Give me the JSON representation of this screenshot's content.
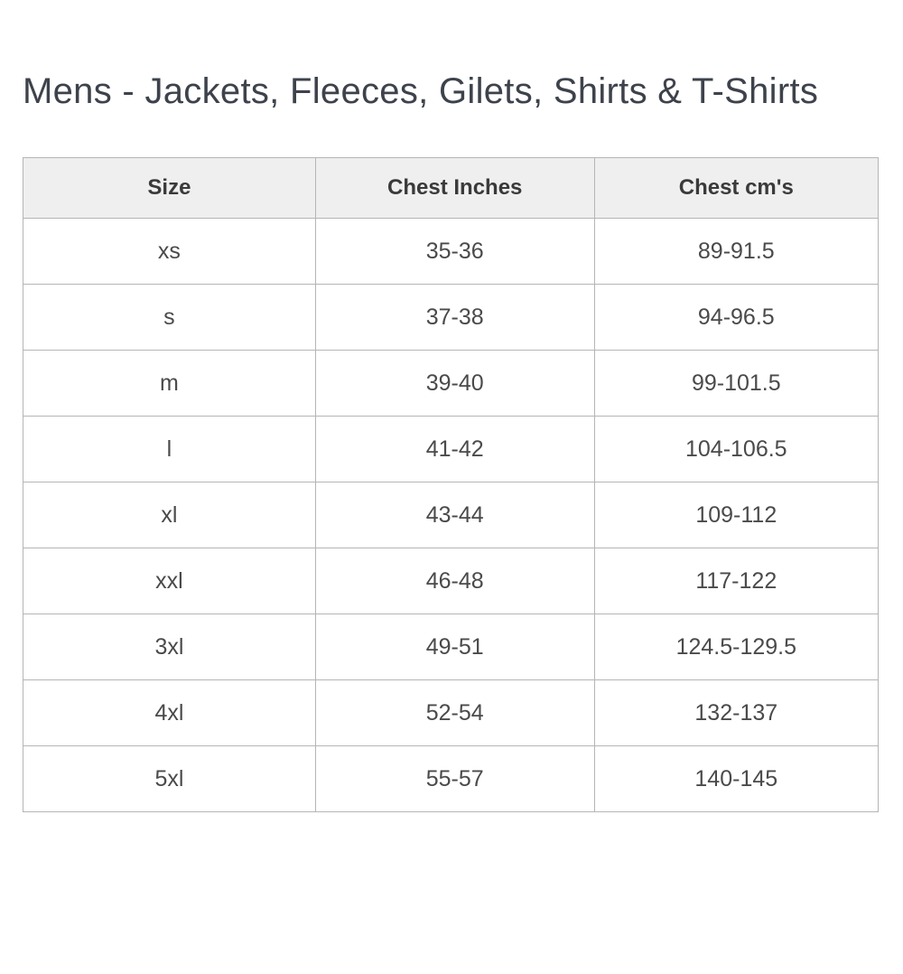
{
  "page": {
    "title": "Mens - Jackets, Fleeces, Gilets, Shirts & T-Shirts"
  },
  "table": {
    "columns": [
      "Size",
      "Chest Inches",
      "Chest cm's"
    ],
    "rows": [
      {
        "size": "xs",
        "chest_inches": "35-36",
        "chest_cm": "89-91.5"
      },
      {
        "size": "s",
        "chest_inches": "37-38",
        "chest_cm": "94-96.5"
      },
      {
        "size": "m",
        "chest_inches": "39-40",
        "chest_cm": "99-101.5"
      },
      {
        "size": "l",
        "chest_inches": "41-42",
        "chest_cm": "104-106.5"
      },
      {
        "size": "xl",
        "chest_inches": "43-44",
        "chest_cm": "109-112"
      },
      {
        "size": "xxl",
        "chest_inches": "46-48",
        "chest_cm": "117-122"
      },
      {
        "size": "3xl",
        "chest_inches": "49-51",
        "chest_cm": "124.5-129.5"
      },
      {
        "size": "4xl",
        "chest_inches": "52-54",
        "chest_cm": "132-137"
      },
      {
        "size": "5xl",
        "chest_inches": "55-57",
        "chest_cm": "140-145"
      }
    ]
  },
  "colors": {
    "header_background": "#efefef",
    "border": "#b5b5b5",
    "title_text": "#3d424b",
    "header_text": "#3a3a3a",
    "cell_text": "#4a4a4a",
    "page_background": "#ffffff"
  }
}
